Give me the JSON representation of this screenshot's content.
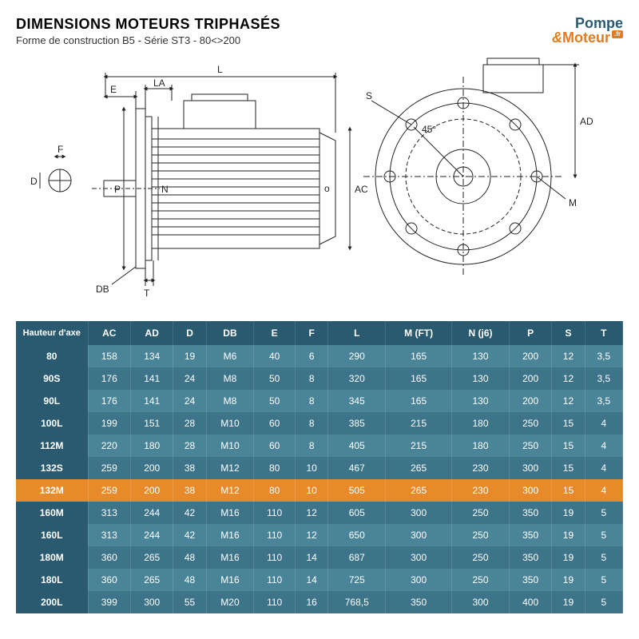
{
  "title": "DIMENSIONS MOTEURS TRIPHASÉS",
  "subtitle": "Forme de construction B5 - Série ST3 - 80<>200",
  "logo": {
    "line1": "Pompe",
    "line2": "Moteur",
    "suffix": ".fr"
  },
  "diagram_labels": {
    "L": "L",
    "LA": "LA",
    "E": "E",
    "F": "F",
    "D": "D",
    "P": "P",
    "N": "N",
    "O": "o",
    "AC": "AC",
    "DB": "DB",
    "T": "T",
    "S": "S",
    "AD": "AD",
    "M": "M",
    "angle": "45°"
  },
  "colors": {
    "header_bg": "#2a5a6f",
    "row_even": "#4a8498",
    "row_odd": "#3d7489",
    "highlight": "#e88a2a",
    "text": "#ffffff",
    "title": "#222222",
    "logo_accent": "#e37b1f"
  },
  "table": {
    "columns": [
      "Hauteur d'axe",
      "AC",
      "AD",
      "D",
      "DB",
      "E",
      "F",
      "L",
      "M (FT)",
      "N (j6)",
      "P",
      "S",
      "T"
    ],
    "highlight_row_index": 6,
    "rows": [
      [
        "80",
        "158",
        "134",
        "19",
        "M6",
        "40",
        "6",
        "290",
        "165",
        "130",
        "200",
        "12",
        "3,5"
      ],
      [
        "90S",
        "176",
        "141",
        "24",
        "M8",
        "50",
        "8",
        "320",
        "165",
        "130",
        "200",
        "12",
        "3,5"
      ],
      [
        "90L",
        "176",
        "141",
        "24",
        "M8",
        "50",
        "8",
        "345",
        "165",
        "130",
        "200",
        "12",
        "3,5"
      ],
      [
        "100L",
        "199",
        "151",
        "28",
        "M10",
        "60",
        "8",
        "385",
        "215",
        "180",
        "250",
        "15",
        "4"
      ],
      [
        "112M",
        "220",
        "180",
        "28",
        "M10",
        "60",
        "8",
        "405",
        "215",
        "180",
        "250",
        "15",
        "4"
      ],
      [
        "132S",
        "259",
        "200",
        "38",
        "M12",
        "80",
        "10",
        "467",
        "265",
        "230",
        "300",
        "15",
        "4"
      ],
      [
        "132M",
        "259",
        "200",
        "38",
        "M12",
        "80",
        "10",
        "505",
        "265",
        "230",
        "300",
        "15",
        "4"
      ],
      [
        "160M",
        "313",
        "244",
        "42",
        "M16",
        "110",
        "12",
        "605",
        "300",
        "250",
        "350",
        "19",
        "5"
      ],
      [
        "160L",
        "313",
        "244",
        "42",
        "M16",
        "110",
        "12",
        "650",
        "300",
        "250",
        "350",
        "19",
        "5"
      ],
      [
        "180M",
        "360",
        "265",
        "48",
        "M16",
        "110",
        "14",
        "687",
        "300",
        "250",
        "350",
        "19",
        "5"
      ],
      [
        "180L",
        "360",
        "265",
        "48",
        "M16",
        "110",
        "14",
        "725",
        "300",
        "250",
        "350",
        "19",
        "5"
      ],
      [
        "200L",
        "399",
        "300",
        "55",
        "M20",
        "110",
        "16",
        "768,5",
        "350",
        "300",
        "400",
        "19",
        "5"
      ]
    ]
  }
}
